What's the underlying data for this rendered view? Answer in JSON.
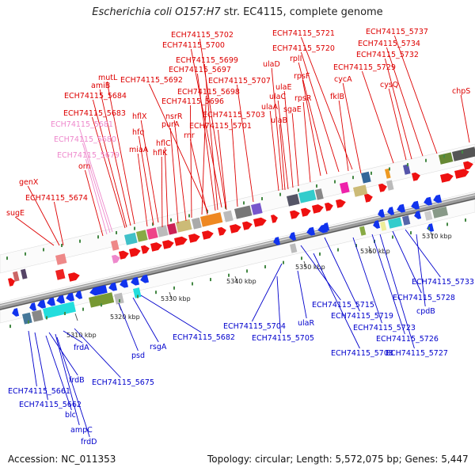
{
  "title": {
    "organism": "Escherichia coli O157:H7",
    "rest": "str. EC4115, complete genome"
  },
  "footer": {
    "accession": "Accession: NC_011353",
    "topology": "Topology: circular; Length: 5,572,075 bp; Genes: 5,447"
  },
  "scale_ticks": [
    "5310 kbp",
    "5320 kbp",
    "5330 kbp",
    "5340 kbp",
    "5350 kbp",
    "5360 kbp",
    "5370 kbp"
  ],
  "top_labels": [
    {
      "text": "ECH74115_5702",
      "color": "red"
    },
    {
      "text": "ECH74115_5700",
      "color": "red"
    },
    {
      "text": "ECH74115_5699",
      "color": "red"
    },
    {
      "text": "ECH74115_5697",
      "color": "red"
    },
    {
      "text": "mutL",
      "color": "red"
    },
    {
      "text": "ECH74115_5692",
      "color": "red"
    },
    {
      "text": "amiB",
      "color": "red"
    },
    {
      "text": "ECH74115_5698",
      "color": "red"
    },
    {
      "text": "ECH74115_5707",
      "color": "red"
    },
    {
      "text": "ECH74115_5684",
      "color": "red"
    },
    {
      "text": "ECH74115_5696",
      "color": "red"
    },
    {
      "text": "hflX",
      "color": "red"
    },
    {
      "text": "nsrR",
      "color": "red"
    },
    {
      "text": "ECH74115_5703",
      "color": "red"
    },
    {
      "text": "ECH74115_5683",
      "color": "red"
    },
    {
      "text": "purA",
      "color": "red"
    },
    {
      "text": "ECH74115_5701",
      "color": "red"
    },
    {
      "text": "ECH74115_5681",
      "color": "pink"
    },
    {
      "text": "hfq",
      "color": "red"
    },
    {
      "text": "rnr",
      "color": "red"
    },
    {
      "text": "hflC",
      "color": "red"
    },
    {
      "text": "ECH74115_5680",
      "color": "pink"
    },
    {
      "text": "miaA",
      "color": "red"
    },
    {
      "text": "hflK",
      "color": "red"
    },
    {
      "text": "ECH74115_5679",
      "color": "pink"
    },
    {
      "text": "orn",
      "color": "red"
    },
    {
      "text": "genX",
      "color": "red"
    },
    {
      "text": "ECH74115_5674",
      "color": "red"
    },
    {
      "text": "sugE",
      "color": "red"
    },
    {
      "text": "ECH74115_5721",
      "color": "red"
    },
    {
      "text": "ECH74115_5720",
      "color": "red"
    },
    {
      "text": "rplI",
      "color": "red"
    },
    {
      "text": "ulaD",
      "color": "red"
    },
    {
      "text": "rpsF",
      "color": "red"
    },
    {
      "text": "ulaE",
      "color": "red"
    },
    {
      "text": "ulaC",
      "color": "red"
    },
    {
      "text": "rpsR",
      "color": "red"
    },
    {
      "text": "ulaA",
      "color": "red"
    },
    {
      "text": "sgaE",
      "color": "red"
    },
    {
      "text": "ulaB",
      "color": "red"
    },
    {
      "text": "ECH74115_5737",
      "color": "red"
    },
    {
      "text": "ECH74115_5734",
      "color": "red"
    },
    {
      "text": "ECH74115_5732",
      "color": "red"
    },
    {
      "text": "ECH74115_5729",
      "color": "red"
    },
    {
      "text": "cycA",
      "color": "red"
    },
    {
      "text": "cysQ",
      "color": "red"
    },
    {
      "text": "fklB",
      "color": "red"
    },
    {
      "text": "chpS",
      "color": "red"
    }
  ],
  "bottom_labels": [
    {
      "text": "ECH74115_5733",
      "color": "blue"
    },
    {
      "text": "ECH74115_5728",
      "color": "blue"
    },
    {
      "text": "ECH74115_5715",
      "color": "blue"
    },
    {
      "text": "cpdB",
      "color": "blue"
    },
    {
      "text": "ECH74115_5719",
      "color": "blue"
    },
    {
      "text": "ECH74115_5723",
      "color": "blue"
    },
    {
      "text": "ECH74115_5704",
      "color": "blue"
    },
    {
      "text": "ulaR",
      "color": "blue"
    },
    {
      "text": "ECH74115_5726",
      "color": "blue"
    },
    {
      "text": "ECH74115_5682",
      "color": "blue"
    },
    {
      "text": "ECH74115_5705",
      "color": "blue"
    },
    {
      "text": "ECH74115_5727",
      "color": "blue"
    },
    {
      "text": "rsgA",
      "color": "blue"
    },
    {
      "text": "ECH74115_5708",
      "color": "blue"
    },
    {
      "text": "psd",
      "color": "blue"
    },
    {
      "text": "frdA",
      "color": "blue"
    },
    {
      "text": "frdB",
      "color": "blue"
    },
    {
      "text": "ECH74115_5675",
      "color": "blue"
    },
    {
      "text": "ECH74115_5661",
      "color": "blue"
    },
    {
      "text": "ECH74115_5662",
      "color": "blue"
    },
    {
      "text": "blc",
      "color": "blue"
    },
    {
      "text": "ampC",
      "color": "blue"
    },
    {
      "text": "frdD",
      "color": "blue"
    }
  ],
  "colors": {
    "forward_gene": "#ee1111",
    "reverse_gene": "#1133ee",
    "pseudo_gene": "#ee88cc",
    "backbone": "#888888"
  }
}
